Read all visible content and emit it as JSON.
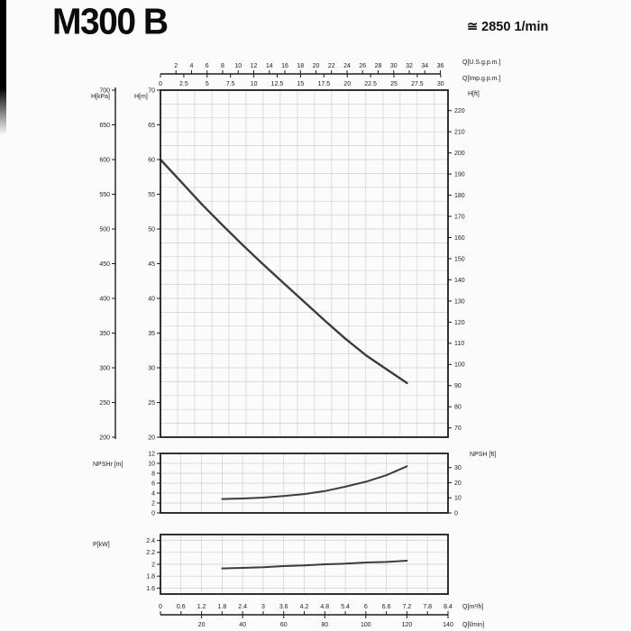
{
  "header": {
    "model": "M300 B",
    "speed": "≅ 2850 1/min"
  },
  "colors": {
    "curve": "#3c3c3c",
    "axis": "#1c1c1c",
    "grid": "#cfcfcf",
    "text": "#1c1c1c",
    "background": "#fbfbfb"
  },
  "chart_data": [
    {
      "type": "line",
      "name": "head-flow-curve",
      "x_range_m3h": [
        0,
        8.4
      ],
      "x_axis_top": {
        "us_gpm": {
          "label": "Q[U.S.g.p.m.]",
          "ticks": [
            2,
            4,
            6,
            8,
            10,
            12,
            14,
            16,
            18,
            20,
            22,
            24,
            26,
            28,
            30,
            32,
            34,
            36
          ],
          "to_m3h": 0.2271
        },
        "imp_gpm": {
          "label": "Q[Imp.g.p.m.]",
          "ticks": [
            0,
            2.5,
            5,
            7.5,
            10,
            12.5,
            15,
            17.5,
            20,
            22.5,
            25,
            27.5,
            30
          ],
          "to_m3h": 0.2728
        }
      },
      "y_left_m": {
        "label": "H[m]",
        "ticks": [
          70,
          65,
          60,
          55,
          50,
          45,
          40,
          35,
          30,
          25,
          20
        ],
        "range": [
          20,
          70
        ]
      },
      "y_left_kpa": {
        "label": "H[kPa]",
        "ticks": [
          700,
          650,
          600,
          550,
          500,
          450,
          400,
          350,
          300,
          250,
          200
        ],
        "kpa_per_m": 10
      },
      "y_right_ft": {
        "label": "H[ft]",
        "ticks": [
          220,
          210,
          200,
          190,
          180,
          170,
          160,
          150,
          140,
          130,
          120,
          110,
          100,
          90,
          80,
          70
        ],
        "m_per_ft": 0.3048
      },
      "points_q_h": [
        [
          0,
          60
        ],
        [
          0.6,
          56.8
        ],
        [
          1.2,
          53.6
        ],
        [
          1.8,
          50.6
        ],
        [
          2.4,
          47.7
        ],
        [
          3,
          44.9
        ],
        [
          3.6,
          42.2
        ],
        [
          4.2,
          39.5
        ],
        [
          4.8,
          36.8
        ],
        [
          5.4,
          34.2
        ],
        [
          6,
          31.8
        ],
        [
          6.6,
          29.8
        ],
        [
          7.2,
          27.8
        ]
      ]
    },
    {
      "type": "line",
      "name": "npsh-curve",
      "y_left": {
        "label": "NPSHr [m]",
        "ticks": [
          12,
          10,
          8,
          6,
          4,
          2,
          0
        ],
        "range": [
          0,
          12
        ]
      },
      "y_right": {
        "label": "NPSH [ft]",
        "ticks": [
          30,
          20,
          10,
          0
        ],
        "m_per_ft": 0.3048
      },
      "points_q_npsh": [
        [
          1.8,
          2.8
        ],
        [
          2.4,
          2.9
        ],
        [
          3,
          3.1
        ],
        [
          3.6,
          3.4
        ],
        [
          4.2,
          3.8
        ],
        [
          4.8,
          4.4
        ],
        [
          5.4,
          5.3
        ],
        [
          6,
          6.3
        ],
        [
          6.6,
          7.6
        ],
        [
          7.2,
          9.4
        ]
      ]
    },
    {
      "type": "line",
      "name": "power-curve",
      "y_left": {
        "label": "P[kW]",
        "ticks": [
          2.4,
          2.2,
          2,
          1.8,
          1.6
        ],
        "range": [
          1.5,
          2.5
        ]
      },
      "points_q_p": [
        [
          1.8,
          1.93
        ],
        [
          2.4,
          1.94
        ],
        [
          3,
          1.95
        ],
        [
          3.6,
          1.97
        ],
        [
          4.2,
          1.98
        ],
        [
          4.8,
          2
        ],
        [
          5.4,
          2.01
        ],
        [
          6,
          2.03
        ],
        [
          6.6,
          2.04
        ],
        [
          7.2,
          2.06
        ]
      ]
    }
  ],
  "x_axis_bottom": {
    "m3h": {
      "label": "Q[m³/h]",
      "ticks": [
        0,
        0.6,
        1.2,
        1.8,
        2.4,
        3,
        3.6,
        4.2,
        4.8,
        5.4,
        6,
        6.6,
        7.2,
        7.8,
        8.4
      ]
    },
    "lmin": {
      "label": "Q[l/min]",
      "ticks": [
        20,
        40,
        60,
        80,
        100,
        120,
        140
      ],
      "to_m3h": 0.06
    }
  }
}
